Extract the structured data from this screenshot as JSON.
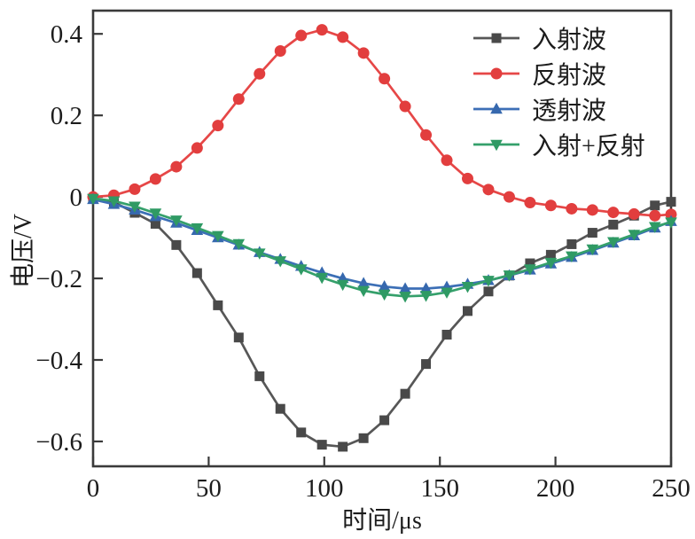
{
  "figure": {
    "background": "#ffffff",
    "axis_color": "#3a3a3a",
    "text_color": "#1c1c1c"
  },
  "chart_data": {
    "type": "line",
    "title": "",
    "xlabel": "时间/μs",
    "ylabel": "电压/V",
    "xlim": [
      0,
      250
    ],
    "ylim": [
      -0.661,
      0.457
    ],
    "xticks": [
      0,
      50,
      100,
      150,
      200,
      250
    ],
    "xtick_labels": [
      "0",
      "50",
      "100",
      "150",
      "200",
      "250"
    ],
    "yticks": [
      0.4,
      0.2,
      0,
      -0.2,
      -0.4,
      -0.6
    ],
    "ytick_labels": [
      "0.4",
      "0.2",
      "0",
      "−0.2",
      "−0.4",
      "−0.6"
    ],
    "grid": false,
    "legend_position": "top-right",
    "x": [
      0,
      9,
      18,
      27,
      36,
      45,
      54,
      63,
      72,
      81,
      90,
      99,
      108,
      117,
      126,
      135,
      144,
      153,
      162,
      171,
      180,
      189,
      198,
      207,
      216,
      225,
      234,
      243,
      250
    ],
    "series": [
      {
        "key": "incident-wave",
        "name": "入射波",
        "color": "#575757",
        "marker_color": "#494949",
        "marker": "square",
        "values": [
          -0.005,
          -0.013,
          -0.039,
          -0.066,
          -0.118,
          -0.187,
          -0.266,
          -0.345,
          -0.44,
          -0.52,
          -0.578,
          -0.608,
          -0.613,
          -0.592,
          -0.548,
          -0.483,
          -0.41,
          -0.338,
          -0.28,
          -0.232,
          -0.193,
          -0.163,
          -0.142,
          -0.116,
          -0.088,
          -0.068,
          -0.046,
          -0.021,
          -0.012
        ]
      },
      {
        "key": "reflected-wave",
        "name": "反射波",
        "color": "#e64747",
        "marker_color": "#e23e3e",
        "marker": "circle",
        "values": [
          0,
          0.004,
          0.019,
          0.044,
          0.074,
          0.12,
          0.175,
          0.24,
          0.302,
          0.358,
          0.396,
          0.41,
          0.392,
          0.353,
          0.29,
          0.222,
          0.152,
          0.09,
          0.045,
          0.018,
          0,
          -0.014,
          -0.021,
          -0.029,
          -0.032,
          -0.038,
          -0.042,
          -0.046,
          -0.043
        ]
      },
      {
        "key": "transmitted-wave",
        "name": "透射波",
        "color": "#3c6fb6",
        "marker_color": "#3668ae",
        "marker": "triangle-up",
        "values": [
          -0.006,
          -0.018,
          -0.032,
          -0.048,
          -0.064,
          -0.082,
          -0.1,
          -0.118,
          -0.136,
          -0.153,
          -0.17,
          -0.186,
          -0.2,
          -0.212,
          -0.22,
          -0.225,
          -0.225,
          -0.221,
          -0.214,
          -0.205,
          -0.193,
          -0.179,
          -0.164,
          -0.148,
          -0.131,
          -0.113,
          -0.095,
          -0.076,
          -0.06
        ]
      },
      {
        "key": "incident-plus-reflected",
        "name": "入射+反射",
        "color": "#35a06b",
        "marker_color": "#2f9a64",
        "marker": "triangle-down",
        "values": [
          -0.004,
          -0.01,
          -0.023,
          -0.04,
          -0.057,
          -0.076,
          -0.095,
          -0.115,
          -0.138,
          -0.157,
          -0.177,
          -0.198,
          -0.215,
          -0.23,
          -0.239,
          -0.244,
          -0.242,
          -0.234,
          -0.22,
          -0.205,
          -0.192,
          -0.177,
          -0.161,
          -0.145,
          -0.128,
          -0.11,
          -0.092,
          -0.073,
          -0.062
        ]
      }
    ]
  }
}
